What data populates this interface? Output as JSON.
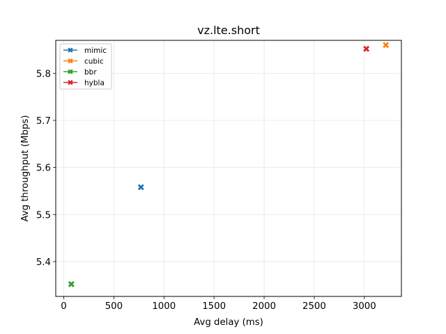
{
  "chart_data": {
    "type": "scatter",
    "title": "vz.lte.short",
    "xlabel": "Avg delay (ms)",
    "ylabel": "Avg throughput (Mbps)",
    "xlim": [
      -80,
      3370
    ],
    "ylim": [
      5.326,
      5.87
    ],
    "xticks": [
      0,
      500,
      1000,
      1500,
      2000,
      2500,
      3000
    ],
    "yticks": [
      5.4,
      5.5,
      5.6,
      5.7,
      5.8
    ],
    "xtick_labels": [
      "0",
      "500",
      "1000",
      "1500",
      "2000",
      "2500",
      "3000"
    ],
    "ytick_labels": [
      "5.4",
      "5.5",
      "5.6",
      "5.7",
      "5.8"
    ],
    "grid": true,
    "legend_position": "top-left",
    "marker": "X",
    "series": [
      {
        "name": "mimic",
        "color": "#1f77b4",
        "x": 770,
        "y": 5.558
      },
      {
        "name": "cubic",
        "color": "#ff7f0e",
        "x": 3215,
        "y": 5.86
      },
      {
        "name": "bbr",
        "color": "#2ca02c",
        "x": 75,
        "y": 5.352
      },
      {
        "name": "hybla",
        "color": "#d62728",
        "x": 3020,
        "y": 5.852
      }
    ]
  }
}
